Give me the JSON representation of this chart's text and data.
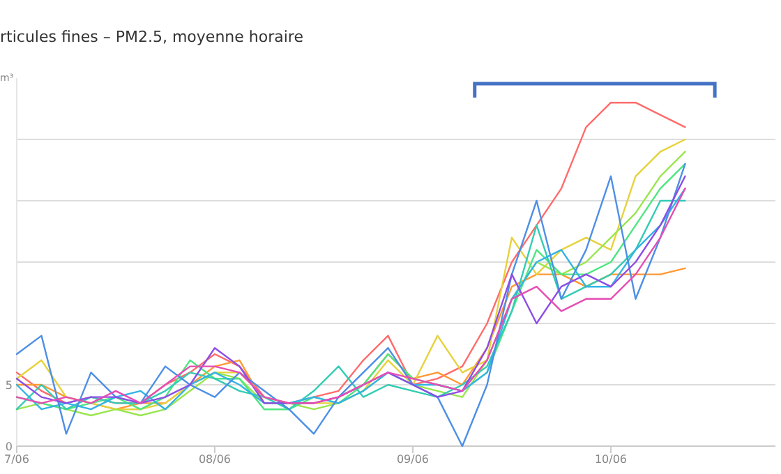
{
  "chart_data": {
    "type": "line",
    "title": "rticules fines – PM2.5, moyenne horaire",
    "ylabel": "m³",
    "categories": [
      "7/06",
      null,
      null,
      null,
      null,
      null,
      null,
      null,
      "08/06",
      null,
      null,
      null,
      null,
      null,
      null,
      null,
      "09/06",
      null,
      null,
      null,
      null,
      null,
      null,
      null,
      "10/06",
      null,
      null,
      null,
      null,
      null,
      null
    ],
    "ylim": [
      0,
      30
    ],
    "yticks": [
      0,
      5,
      {
        "value": 10,
        "label": null
      },
      {
        "value": 15,
        "label": null
      },
      {
        "value": 20,
        "label": null
      },
      {
        "value": 25,
        "label": null
      }
    ],
    "grid": "y",
    "marker": "none",
    "line_style": "solid",
    "series": [
      {
        "color": "#ff6b6b",
        "values": [
          6,
          4.5,
          3.5,
          4,
          3.5,
          3.5,
          5,
          6,
          7.5,
          6.5,
          4,
          3.5,
          4,
          4.5,
          7,
          9,
          5,
          5.5,
          6.5,
          10,
          15,
          18,
          21,
          26,
          28,
          28,
          27,
          26,
          null,
          null,
          null
        ]
      },
      {
        "color": "#ff9933",
        "values": [
          5,
          5,
          4,
          3.5,
          3,
          3.5,
          3.5,
          5,
          6.5,
          7,
          3.5,
          3.5,
          3.5,
          4,
          5,
          7.5,
          5.5,
          6,
          5,
          8,
          13,
          14,
          14,
          13,
          14,
          14,
          14,
          14.5,
          null,
          null,
          null
        ]
      },
      {
        "color": "#e6d23c",
        "values": [
          5.5,
          7,
          4,
          3.5,
          3,
          3,
          3.5,
          5,
          6,
          6,
          4,
          3.5,
          3.5,
          3.5,
          4.5,
          7,
          5,
          9,
          6,
          7,
          17,
          14,
          16,
          17,
          16,
          22,
          24,
          25,
          null,
          null,
          null
        ]
      },
      {
        "color": "#99e64d",
        "values": [
          3,
          3.5,
          3,
          2.5,
          3,
          2.5,
          3,
          4.5,
          6,
          5.5,
          3.5,
          3.5,
          3,
          3.5,
          4.5,
          6,
          5,
          4.5,
          4,
          7,
          12,
          15,
          14,
          15,
          17,
          19,
          22,
          24,
          null,
          null,
          null
        ]
      },
      {
        "color": "#4de680",
        "values": [
          4,
          3.5,
          3,
          3.5,
          4,
          3,
          4,
          7,
          5.5,
          5.5,
          3,
          3,
          4,
          3.5,
          5,
          7.5,
          5.5,
          5,
          4.5,
          6,
          11,
          16,
          14,
          14,
          15,
          18,
          21,
          23,
          null,
          null,
          null
        ]
      },
      {
        "color": "#33ccb3",
        "values": [
          3,
          5,
          3,
          4,
          3.5,
          3.5,
          4.5,
          6,
          5.5,
          4.5,
          4,
          3,
          4.5,
          6.5,
          4,
          5,
          4.5,
          4,
          5,
          6.5,
          11,
          18,
          12,
          13,
          14,
          16,
          20,
          20,
          null,
          null,
          null
        ]
      },
      {
        "color": "#33b3e6",
        "values": [
          5,
          3,
          3.5,
          3,
          4,
          4.5,
          3,
          5,
          6,
          5,
          3.5,
          3.5,
          4,
          3.5,
          4.5,
          6,
          5,
          5,
          4.5,
          6,
          12,
          15,
          16,
          13,
          13,
          16,
          18,
          21,
          null,
          null,
          null
        ]
      },
      {
        "color": "#4d8fe6",
        "values": [
          7.5,
          9,
          1,
          6,
          4,
          3.5,
          6.5,
          5,
          4,
          6,
          4.5,
          3,
          1,
          4,
          6,
          8,
          5,
          4,
          0,
          5,
          14,
          20,
          12,
          16,
          22,
          12,
          17,
          23,
          null,
          null,
          null
        ]
      },
      {
        "color": "#8c4de6",
        "values": [
          5.5,
          4,
          3.5,
          4,
          4,
          3.5,
          4,
          5,
          8,
          6.5,
          3.5,
          3.5,
          3.5,
          4,
          5,
          6,
          5,
          4,
          4.5,
          8,
          14,
          10,
          13,
          14,
          13,
          15,
          18,
          22,
          null,
          null,
          null
        ]
      },
      {
        "color": "#e64db3",
        "values": [
          4,
          3.5,
          4,
          3.5,
          4.5,
          3.5,
          5,
          6.5,
          6.5,
          6,
          4,
          3.5,
          3.5,
          4,
          5,
          6,
          5.5,
          5,
          4.5,
          7,
          12,
          13,
          11,
          12,
          12,
          14,
          17,
          21,
          null,
          null,
          null
        ]
      }
    ]
  }
}
